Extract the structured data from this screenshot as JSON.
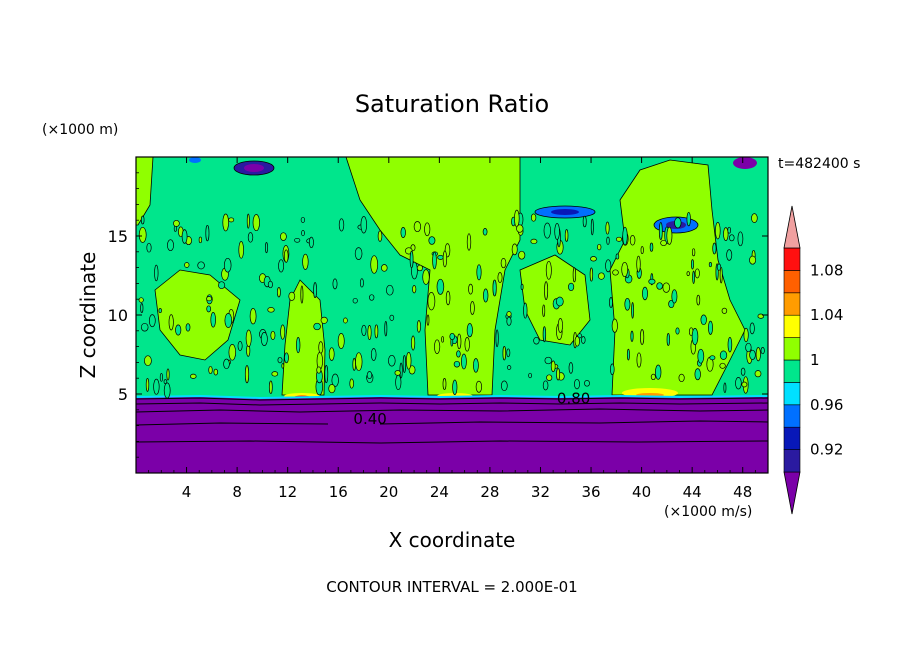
{
  "chart_data": {
    "type": "heatmap",
    "title": "Saturation Ratio",
    "xlabel": "X coordinate",
    "ylabel": "Z coordinate",
    "x_unit": "(×1000 m/s)",
    "y_unit": "(×1000 m)",
    "time_label": "t=482400 s",
    "footer": "CONTOUR INTERVAL = 2.000E-01",
    "xlim": [
      0,
      50
    ],
    "ylim": [
      0,
      20
    ],
    "x_ticks": [
      4,
      8,
      12,
      16,
      20,
      24,
      28,
      32,
      36,
      40,
      44,
      48
    ],
    "y_ticks": [
      5,
      10,
      15
    ],
    "contour_labels": [
      {
        "text": "0.40",
        "x": 17.2,
        "z": 3.1
      },
      {
        "text": "0.80",
        "x": 33.3,
        "z": 4.4
      }
    ],
    "colorbar": {
      "levels": [
        0.92,
        0.94,
        0.96,
        0.98,
        1.0,
        1.02,
        1.04,
        1.06,
        1.08,
        1.1
      ],
      "tick_labels": [
        "1.08",
        "1.04",
        "1",
        "0.96",
        "0.92"
      ],
      "colors": [
        "#7b00a8",
        "#2a1aa0",
        "#0818b8",
        "#0070ff",
        "#00e0ff",
        "#00e68c",
        "#90ff00",
        "#ffff00",
        "#ff9c00",
        "#ff6000",
        "#ff1010",
        "#f0a0a0"
      ]
    },
    "regions": {
      "dry_layer": {
        "z_top": 4.8,
        "value": "< 0.92"
      },
      "supersaturated_columns_x": [
        [
          10,
          22
        ],
        [
          23,
          34
        ],
        [
          37,
          50
        ]
      ],
      "cloud_base_z": 4.8
    }
  }
}
